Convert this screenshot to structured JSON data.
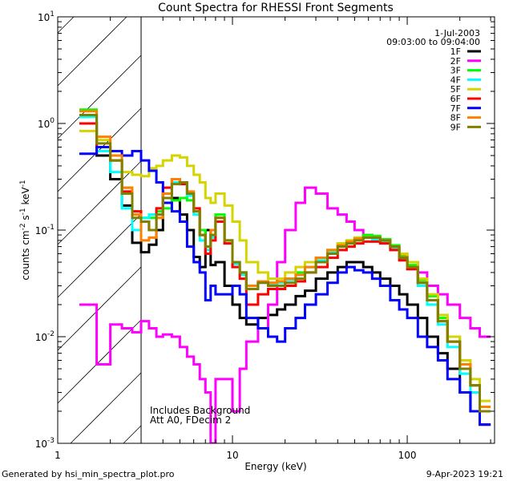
{
  "chart_data": {
    "type": "line",
    "title": "Count Spectra for RHESSI Front Segments",
    "xlabel": "Energy (keV)",
    "ylabel": {
      "base": "counts cm",
      "parts": [
        [
          "-2",
          " s"
        ],
        [
          "-1",
          " keV"
        ],
        [
          "-1",
          ""
        ]
      ]
    },
    "xscale": "log",
    "yscale": "log",
    "xlim": [
      1,
      316
    ],
    "ylim": [
      0.001,
      10
    ],
    "x_ticks": [
      {
        "value": 1,
        "label": "1"
      },
      {
        "value": 10,
        "label": "10"
      },
      {
        "value": 100,
        "label": "100"
      }
    ],
    "y_ticks": [
      {
        "value": 10,
        "base": "10",
        "exp": "1"
      },
      {
        "value": 1,
        "base": "10",
        "exp": "0"
      },
      {
        "value": 0.1,
        "base": "10",
        "exp": "-1"
      },
      {
        "value": 0.01,
        "base": "10",
        "exp": "-2"
      },
      {
        "value": 0.001,
        "base": "10",
        "exp": "-3"
      }
    ],
    "shaded_region": {
      "x": [
        1,
        3
      ],
      "style": "hatched"
    },
    "annotations": {
      "date": "1-Jul-2003",
      "time_range": "09:03:00 to 09:04:00",
      "note1": "Includes Background",
      "note2": "Att A0, FDecim 2"
    },
    "legend_position": "top-right",
    "energy_edges": [
      1.33,
      1.67,
      2,
      2.33,
      2.67,
      3,
      3.33,
      3.67,
      4,
      4.5,
      5,
      5.5,
      6,
      6.5,
      7,
      7.5,
      8,
      9,
      10,
      11,
      12,
      14,
      16,
      18,
      20,
      23,
      26,
      30,
      35,
      40,
      45,
      50,
      56,
      63,
      70,
      80,
      90,
      100,
      115,
      130,
      150,
      170,
      200,
      230,
      260,
      300
    ],
    "series": [
      {
        "name": "1F",
        "color": "#000000",
        "values": [
          1.0,
          0.5,
          0.3,
          0.17,
          0.076,
          0.062,
          0.073,
          0.1,
          0.18,
          0.2,
          0.14,
          0.1,
          0.056,
          0.045,
          0.1,
          0.047,
          0.05,
          0.03,
          0.02,
          0.015,
          0.013,
          0.015,
          0.016,
          0.018,
          0.02,
          0.024,
          0.027,
          0.035,
          0.04,
          0.045,
          0.05,
          0.05,
          0.045,
          0.04,
          0.035,
          0.03,
          0.025,
          0.02,
          0.015,
          0.01,
          0.007,
          0.005,
          0.003,
          0.002,
          0.0015
        ]
      },
      {
        "name": "2F",
        "color": "#ff00ff",
        "values": [
          0.02,
          0.0055,
          0.013,
          0.012,
          0.011,
          0.014,
          0.012,
          0.01,
          0.0105,
          0.01,
          0.008,
          0.0065,
          0.0055,
          0.004,
          0.003,
          0.0008,
          0.004,
          0.004,
          0.002,
          0.005,
          0.009,
          0.012,
          0.02,
          0.05,
          0.1,
          0.18,
          0.25,
          0.22,
          0.16,
          0.14,
          0.12,
          0.1,
          0.09,
          0.085,
          0.08,
          0.07,
          0.06,
          0.05,
          0.04,
          0.03,
          0.025,
          0.02,
          0.015,
          0.012,
          0.01
        ]
      },
      {
        "name": "3F",
        "color": "#00ff00",
        "values": [
          1.35,
          0.6,
          0.45,
          0.25,
          0.15,
          0.13,
          0.13,
          0.15,
          0.16,
          0.19,
          0.2,
          0.19,
          0.15,
          0.1,
          0.07,
          0.09,
          0.14,
          0.08,
          0.05,
          0.04,
          0.03,
          0.033,
          0.032,
          0.033,
          0.035,
          0.04,
          0.045,
          0.055,
          0.065,
          0.075,
          0.08,
          0.085,
          0.09,
          0.088,
          0.082,
          0.072,
          0.058,
          0.047,
          0.034,
          0.024,
          0.015,
          0.01,
          0.0055,
          0.0035,
          0.002
        ]
      },
      {
        "name": "4F",
        "color": "#00ffff",
        "values": [
          1.15,
          0.55,
          0.35,
          0.16,
          0.1,
          0.13,
          0.14,
          0.16,
          0.22,
          0.28,
          0.27,
          0.21,
          0.14,
          0.08,
          0.065,
          0.085,
          0.12,
          0.075,
          0.048,
          0.038,
          0.028,
          0.032,
          0.031,
          0.032,
          0.034,
          0.038,
          0.045,
          0.052,
          0.062,
          0.072,
          0.078,
          0.082,
          0.085,
          0.082,
          0.078,
          0.068,
          0.054,
          0.043,
          0.03,
          0.02,
          0.013,
          0.008,
          0.0045,
          0.003,
          0.002
        ]
      },
      {
        "name": "5F",
        "color": "#d4d400",
        "values": [
          0.85,
          0.7,
          0.45,
          0.35,
          0.33,
          0.32,
          0.38,
          0.4,
          0.45,
          0.5,
          0.48,
          0.4,
          0.33,
          0.28,
          0.2,
          0.18,
          0.22,
          0.17,
          0.12,
          0.08,
          0.05,
          0.04,
          0.035,
          0.035,
          0.04,
          0.045,
          0.05,
          0.055,
          0.065,
          0.075,
          0.08,
          0.085,
          0.085,
          0.085,
          0.08,
          0.07,
          0.06,
          0.05,
          0.035,
          0.025,
          0.016,
          0.01,
          0.006,
          0.004,
          0.0025
        ]
      },
      {
        "name": "6F",
        "color": "#ff0000",
        "values": [
          1.0,
          0.6,
          0.45,
          0.23,
          0.15,
          0.12,
          0.1,
          0.16,
          0.25,
          0.3,
          0.27,
          0.22,
          0.16,
          0.09,
          0.06,
          0.08,
          0.12,
          0.075,
          0.045,
          0.035,
          0.02,
          0.025,
          0.028,
          0.028,
          0.03,
          0.033,
          0.04,
          0.045,
          0.055,
          0.065,
          0.07,
          0.075,
          0.078,
          0.078,
          0.075,
          0.065,
          0.052,
          0.043,
          0.032,
          0.022,
          0.014,
          0.009,
          0.005,
          0.0035,
          0.0015
        ]
      },
      {
        "name": "7F",
        "color": "#0000ff",
        "values": [
          0.52,
          0.6,
          0.55,
          0.5,
          0.55,
          0.45,
          0.36,
          0.28,
          0.18,
          0.15,
          0.12,
          0.07,
          0.05,
          0.04,
          0.022,
          0.03,
          0.025,
          0.025,
          0.03,
          0.025,
          0.015,
          0.012,
          0.01,
          0.009,
          0.012,
          0.015,
          0.02,
          0.025,
          0.032,
          0.04,
          0.045,
          0.042,
          0.04,
          0.035,
          0.03,
          0.022,
          0.018,
          0.015,
          0.01,
          0.008,
          0.006,
          0.004,
          0.003,
          0.002,
          0.0015
        ]
      },
      {
        "name": "8F",
        "color": "#ff8000",
        "values": [
          1.3,
          0.75,
          0.5,
          0.25,
          0.14,
          0.08,
          0.085,
          0.13,
          0.22,
          0.3,
          0.28,
          0.23,
          0.15,
          0.09,
          0.07,
          0.1,
          0.13,
          0.08,
          0.05,
          0.04,
          0.03,
          0.033,
          0.032,
          0.033,
          0.035,
          0.038,
          0.045,
          0.055,
          0.065,
          0.072,
          0.078,
          0.083,
          0.085,
          0.085,
          0.08,
          0.07,
          0.056,
          0.045,
          0.032,
          0.022,
          0.014,
          0.009,
          0.0055,
          0.0035,
          0.0022
        ]
      },
      {
        "name": "9F",
        "color": "#808000",
        "values": [
          1.2,
          0.65,
          0.45,
          0.22,
          0.13,
          0.12,
          0.1,
          0.14,
          0.2,
          0.27,
          0.28,
          0.22,
          0.15,
          0.09,
          0.07,
          0.09,
          0.13,
          0.08,
          0.05,
          0.04,
          0.028,
          0.032,
          0.03,
          0.03,
          0.032,
          0.035,
          0.04,
          0.05,
          0.06,
          0.07,
          0.075,
          0.08,
          0.085,
          0.085,
          0.08,
          0.07,
          0.055,
          0.045,
          0.032,
          0.022,
          0.014,
          0.009,
          0.005,
          0.0035,
          0.002
        ]
      }
    ]
  },
  "footer": {
    "generated_by": "Generated by hsi_min_spectra_plot.pro",
    "timestamp": "9-Apr-2023 19:21"
  }
}
